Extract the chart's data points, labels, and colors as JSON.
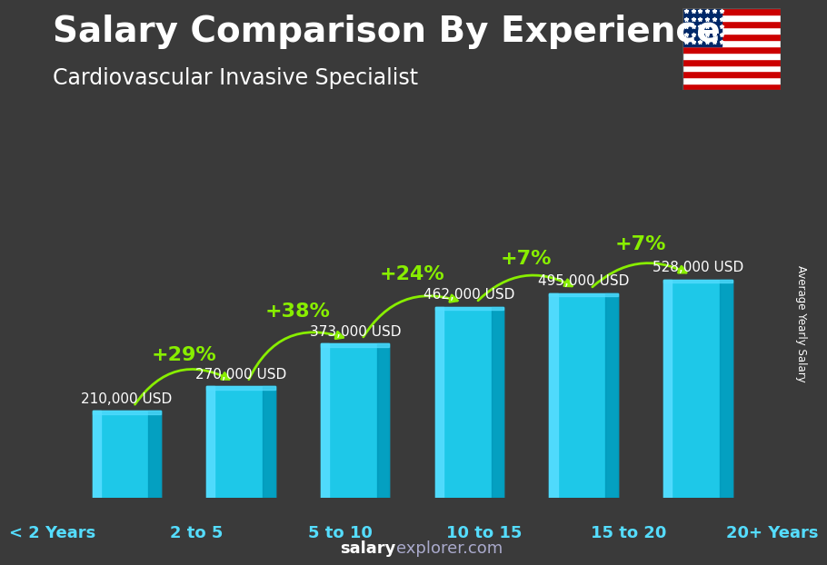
{
  "title": "Salary Comparison By Experience",
  "subtitle": "Cardiovascular Invasive Specialist",
  "categories": [
    "< 2 Years",
    "2 to 5",
    "5 to 10",
    "10 to 15",
    "15 to 20",
    "20+ Years"
  ],
  "values": [
    210000,
    270000,
    373000,
    462000,
    495000,
    528000
  ],
  "labels": [
    "210,000 USD",
    "270,000 USD",
    "373,000 USD",
    "462,000 USD",
    "495,000 USD",
    "528,000 USD"
  ],
  "pct_changes": [
    "+29%",
    "+38%",
    "+24%",
    "+7%",
    "+7%"
  ],
  "bar_color_main": "#1ec8e8",
  "bar_color_light": "#55ddff",
  "bar_color_dark": "#0099bb",
  "bar_color_darker": "#007799",
  "bg_color": "#3a3a3a",
  "text_color_white": "#ffffff",
  "text_color_cyan": "#55ddff",
  "text_color_green": "#88ee00",
  "watermark_salary": "salary",
  "watermark_explorer": "explorer.com",
  "ylabel": "Average Yearly Salary",
  "title_fontsize": 28,
  "subtitle_fontsize": 17,
  "label_fontsize": 11,
  "pct_fontsize": 16,
  "cat_fontsize": 13,
  "watermark_fontsize": 13
}
